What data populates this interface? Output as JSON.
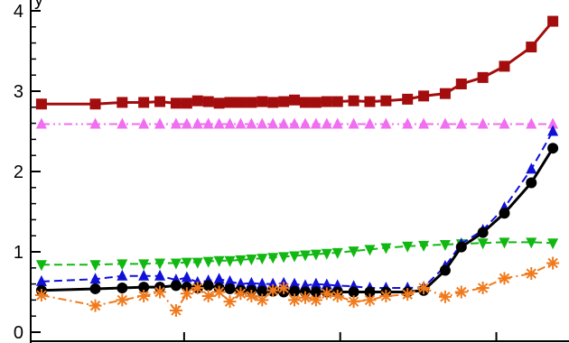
{
  "chart_data": {
    "type": "line",
    "title": "",
    "xlabel": "",
    "ylabel": "",
    "ylim": [
      0,
      4
    ],
    "y_ticks": [
      "0",
      "1",
      "2",
      "3",
      "4"
    ],
    "y_axis_title_partial": "y",
    "grid": false,
    "legend": "none",
    "series": [
      {
        "color": "#a30d0d",
        "line": "solid",
        "marker": "square",
        "points": [
          [
            0.02,
            2.84
          ],
          [
            0.12,
            2.84
          ],
          [
            0.17,
            2.86
          ],
          [
            0.21,
            2.86
          ],
          [
            0.24,
            2.87
          ],
          [
            0.27,
            2.85
          ],
          [
            0.29,
            2.85
          ],
          [
            0.31,
            2.88
          ],
          [
            0.33,
            2.87
          ],
          [
            0.35,
            2.85
          ],
          [
            0.37,
            2.86
          ],
          [
            0.39,
            2.86
          ],
          [
            0.41,
            2.86
          ],
          [
            0.43,
            2.87
          ],
          [
            0.45,
            2.86
          ],
          [
            0.47,
            2.87
          ],
          [
            0.49,
            2.89
          ],
          [
            0.51,
            2.86
          ],
          [
            0.53,
            2.86
          ],
          [
            0.55,
            2.87
          ],
          [
            0.57,
            2.87
          ],
          [
            0.6,
            2.88
          ],
          [
            0.63,
            2.87
          ],
          [
            0.66,
            2.88
          ],
          [
            0.7,
            2.9
          ],
          [
            0.73,
            2.94
          ],
          [
            0.77,
            2.97
          ],
          [
            0.8,
            3.09
          ],
          [
            0.84,
            3.17
          ],
          [
            0.88,
            3.31
          ],
          [
            0.93,
            3.55
          ],
          [
            0.97,
            3.87
          ]
        ]
      },
      {
        "color": "#f06ef0",
        "line": "dash-dot-dot",
        "marker": "triangle-up",
        "points": [
          [
            0.02,
            2.59
          ],
          [
            0.12,
            2.59
          ],
          [
            0.17,
            2.59
          ],
          [
            0.21,
            2.59
          ],
          [
            0.24,
            2.59
          ],
          [
            0.27,
            2.59
          ],
          [
            0.29,
            2.59
          ],
          [
            0.31,
            2.59
          ],
          [
            0.33,
            2.59
          ],
          [
            0.35,
            2.59
          ],
          [
            0.37,
            2.59
          ],
          [
            0.39,
            2.59
          ],
          [
            0.41,
            2.59
          ],
          [
            0.43,
            2.59
          ],
          [
            0.45,
            2.59
          ],
          [
            0.47,
            2.59
          ],
          [
            0.49,
            2.59
          ],
          [
            0.51,
            2.59
          ],
          [
            0.53,
            2.59
          ],
          [
            0.55,
            2.59
          ],
          [
            0.57,
            2.59
          ],
          [
            0.6,
            2.59
          ],
          [
            0.63,
            2.59
          ],
          [
            0.66,
            2.59
          ],
          [
            0.7,
            2.59
          ],
          [
            0.73,
            2.59
          ],
          [
            0.77,
            2.59
          ],
          [
            0.8,
            2.59
          ],
          [
            0.84,
            2.59
          ],
          [
            0.88,
            2.59
          ],
          [
            0.93,
            2.59
          ],
          [
            0.97,
            2.59
          ]
        ]
      },
      {
        "color": "#12b812",
        "line": "dashed",
        "marker": "triangle-down",
        "points": [
          [
            0.02,
            0.84
          ],
          [
            0.12,
            0.84
          ],
          [
            0.17,
            0.85
          ],
          [
            0.21,
            0.85
          ],
          [
            0.24,
            0.86
          ],
          [
            0.27,
            0.86
          ],
          [
            0.29,
            0.87
          ],
          [
            0.31,
            0.87
          ],
          [
            0.33,
            0.88
          ],
          [
            0.35,
            0.89
          ],
          [
            0.37,
            0.89
          ],
          [
            0.39,
            0.9
          ],
          [
            0.41,
            0.91
          ],
          [
            0.43,
            0.92
          ],
          [
            0.45,
            0.93
          ],
          [
            0.47,
            0.94
          ],
          [
            0.49,
            0.95
          ],
          [
            0.51,
            0.96
          ],
          [
            0.53,
            0.97
          ],
          [
            0.55,
            0.98
          ],
          [
            0.57,
            0.99
          ],
          [
            0.6,
            1.01
          ],
          [
            0.63,
            1.03
          ],
          [
            0.66,
            1.05
          ],
          [
            0.7,
            1.07
          ],
          [
            0.73,
            1.08
          ],
          [
            0.77,
            1.09
          ],
          [
            0.8,
            1.1
          ],
          [
            0.84,
            1.11
          ],
          [
            0.88,
            1.12
          ],
          [
            0.93,
            1.12
          ],
          [
            0.97,
            1.11
          ]
        ]
      },
      {
        "color": "#1010d8",
        "line": "dashed",
        "marker": "triangle-up",
        "points": [
          [
            0.02,
            0.63
          ],
          [
            0.12,
            0.66
          ],
          [
            0.17,
            0.7
          ],
          [
            0.21,
            0.7
          ],
          [
            0.24,
            0.7
          ],
          [
            0.27,
            0.65
          ],
          [
            0.29,
            0.68
          ],
          [
            0.31,
            0.62
          ],
          [
            0.33,
            0.64
          ],
          [
            0.35,
            0.66
          ],
          [
            0.37,
            0.63
          ],
          [
            0.39,
            0.6
          ],
          [
            0.41,
            0.61
          ],
          [
            0.43,
            0.6
          ],
          [
            0.45,
            0.6
          ],
          [
            0.47,
            0.61
          ],
          [
            0.49,
            0.6
          ],
          [
            0.51,
            0.58
          ],
          [
            0.53,
            0.6
          ],
          [
            0.55,
            0.59
          ],
          [
            0.57,
            0.58
          ],
          [
            0.6,
            0.57
          ],
          [
            0.63,
            0.55
          ],
          [
            0.66,
            0.55
          ],
          [
            0.7,
            0.55
          ],
          [
            0.73,
            0.56
          ],
          [
            0.77,
            0.82
          ],
          [
            0.8,
            1.1
          ],
          [
            0.84,
            1.27
          ],
          [
            0.88,
            1.55
          ],
          [
            0.93,
            2.03
          ],
          [
            0.97,
            2.5
          ]
        ]
      },
      {
        "color": "#000000",
        "line": "solid",
        "marker": "circle",
        "points": [
          [
            0.02,
            0.52
          ],
          [
            0.12,
            0.54
          ],
          [
            0.17,
            0.55
          ],
          [
            0.21,
            0.56
          ],
          [
            0.24,
            0.56
          ],
          [
            0.27,
            0.58
          ],
          [
            0.29,
            0.56
          ],
          [
            0.31,
            0.55
          ],
          [
            0.33,
            0.58
          ],
          [
            0.35,
            0.55
          ],
          [
            0.37,
            0.54
          ],
          [
            0.39,
            0.52
          ],
          [
            0.41,
            0.52
          ],
          [
            0.43,
            0.51
          ],
          [
            0.45,
            0.51
          ],
          [
            0.47,
            0.5
          ],
          [
            0.49,
            0.51
          ],
          [
            0.51,
            0.5
          ],
          [
            0.53,
            0.5
          ],
          [
            0.55,
            0.5
          ],
          [
            0.57,
            0.5
          ],
          [
            0.6,
            0.5
          ],
          [
            0.63,
            0.5
          ],
          [
            0.66,
            0.5
          ],
          [
            0.7,
            0.5
          ],
          [
            0.73,
            0.52
          ],
          [
            0.77,
            0.77
          ],
          [
            0.8,
            1.06
          ],
          [
            0.84,
            1.24
          ],
          [
            0.88,
            1.48
          ],
          [
            0.93,
            1.86
          ],
          [
            0.97,
            2.29
          ]
        ]
      },
      {
        "color": "#f07a1c",
        "line": "dash-dot",
        "marker": "asterisk",
        "points": [
          [
            0.02,
            0.46
          ],
          [
            0.12,
            0.33
          ],
          [
            0.17,
            0.4
          ],
          [
            0.21,
            0.45
          ],
          [
            0.24,
            0.5
          ],
          [
            0.27,
            0.27
          ],
          [
            0.29,
            0.48
          ],
          [
            0.31,
            0.55
          ],
          [
            0.33,
            0.45
          ],
          [
            0.35,
            0.5
          ],
          [
            0.37,
            0.38
          ],
          [
            0.39,
            0.48
          ],
          [
            0.41,
            0.45
          ],
          [
            0.43,
            0.4
          ],
          [
            0.45,
            0.52
          ],
          [
            0.47,
            0.55
          ],
          [
            0.49,
            0.4
          ],
          [
            0.51,
            0.43
          ],
          [
            0.53,
            0.4
          ],
          [
            0.55,
            0.48
          ],
          [
            0.57,
            0.45
          ],
          [
            0.6,
            0.38
          ],
          [
            0.63,
            0.4
          ],
          [
            0.66,
            0.45
          ],
          [
            0.7,
            0.47
          ],
          [
            0.73,
            0.55
          ],
          [
            0.77,
            0.44
          ],
          [
            0.8,
            0.5
          ],
          [
            0.84,
            0.55
          ],
          [
            0.88,
            0.67
          ],
          [
            0.93,
            0.73
          ],
          [
            0.97,
            0.86
          ]
        ]
      }
    ]
  }
}
